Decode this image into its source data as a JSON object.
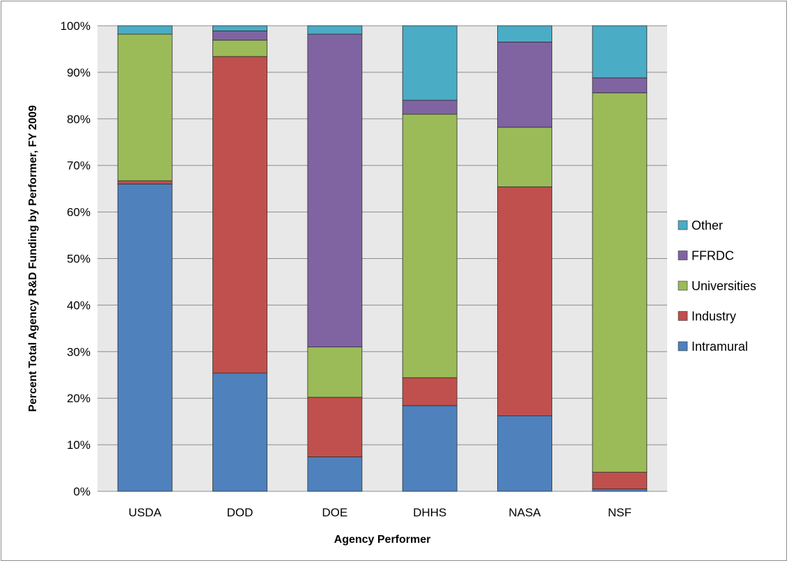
{
  "chart_data": {
    "type": "bar",
    "stacked": true,
    "percent_stacked": true,
    "title": "",
    "xlabel": "Agency Performer",
    "ylabel": "Percent Total Agency R&D Funding by Performer, FY 2009",
    "ylim": [
      0,
      100
    ],
    "yticks": [
      "0%",
      "10%",
      "20%",
      "30%",
      "40%",
      "50%",
      "60%",
      "70%",
      "80%",
      "90%",
      "100%"
    ],
    "grid": true,
    "legend_position": "right",
    "categories": [
      "USDA",
      "DOD",
      "DOE",
      "DHHS",
      "NASA",
      "NSF"
    ],
    "series": [
      {
        "name": "Intramural",
        "color": "#4f81bd",
        "values": [
          66.0,
          25.4,
          7.4,
          18.4,
          16.2,
          0.5
        ]
      },
      {
        "name": "Industry",
        "color": "#c0504d",
        "values": [
          0.7,
          68.0,
          12.8,
          6.0,
          49.2,
          3.6
        ]
      },
      {
        "name": "Universities",
        "color": "#9bbb59",
        "values": [
          31.5,
          3.5,
          10.8,
          56.6,
          12.8,
          81.5
        ]
      },
      {
        "name": "FFRDC",
        "color": "#8064a2",
        "values": [
          0.0,
          2.0,
          67.2,
          3.0,
          18.3,
          3.2
        ]
      },
      {
        "name": "Other",
        "color": "#4bacc6",
        "values": [
          1.8,
          1.1,
          1.8,
          16.0,
          3.5,
          11.2
        ]
      }
    ]
  },
  "colors": {
    "plot_background": "#e8e8e8",
    "gridline": "#8c8c8c",
    "bar_border": "#2e2e2e"
  }
}
